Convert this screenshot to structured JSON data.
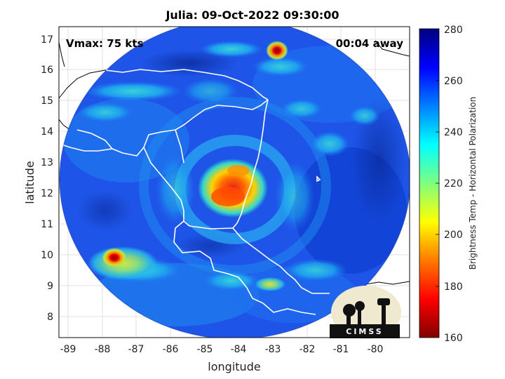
{
  "title": "Julia: 09-Oct-2022 09:30:00",
  "vmax_label": "Vmax: 75 kts",
  "time_away": "00:04 away",
  "xlabel": "longitude",
  "ylabel": "latitude",
  "colorbar": {
    "label": "Brightness Temp - Horizontal Polarization",
    "min": 160,
    "max": 280,
    "ticks": [
      "280",
      "260",
      "240",
      "220",
      "200",
      "180",
      "160"
    ],
    "colormap": "jet"
  },
  "x_ticks": [
    "-89",
    "-88",
    "-87",
    "-86",
    "-85",
    "-84",
    "-83",
    "-82",
    "-81",
    "-80"
  ],
  "y_ticks": [
    "17",
    "16",
    "15",
    "14",
    "13",
    "12",
    "11",
    "10",
    "9",
    "8"
  ],
  "logo_text": "CIMSS",
  "colors": {
    "disk_background": "#1e50e6",
    "coastline": "#ffffff",
    "outside_coastline": "#000000"
  }
}
